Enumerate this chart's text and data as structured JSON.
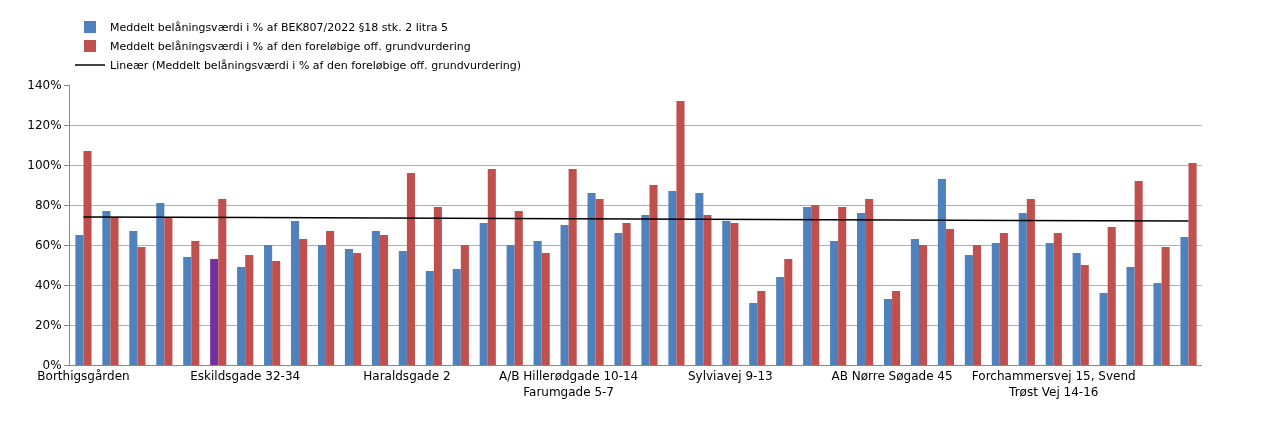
{
  "chart_data": {
    "type": "bar",
    "categories": [
      "Borthigsgården",
      null,
      null,
      null,
      null,
      null,
      "Eskildsgade 32-34",
      null,
      null,
      null,
      null,
      null,
      "Haraldsgade 2",
      null,
      null,
      null,
      null,
      null,
      "A/B Hillerødgade 10-14\nFarumgade 5-7",
      null,
      null,
      null,
      null,
      null,
      "Sylviavej 9-13",
      null,
      null,
      null,
      null,
      null,
      "AB Nørre Søgade 45",
      null,
      null,
      null,
      null,
      null,
      "Forchammersvej 15, Svend\nTrøst Vej 14-16",
      null,
      null,
      null,
      null,
      null
    ],
    "series": [
      {
        "name": "Meddelt belåningsværdi i % af BEK807/2022 §18 stk. 2 litra 5",
        "color": "#4f81bd",
        "colors": [
          "#4f81bd",
          "#4f81bd",
          "#4f81bd",
          "#4f81bd",
          "#4f81bd",
          "#7030a0",
          "#4f81bd",
          "#4f81bd",
          "#4f81bd",
          "#4f81bd",
          "#4f81bd",
          "#4f81bd",
          "#4f81bd",
          "#4f81bd",
          "#4f81bd",
          "#4f81bd",
          "#4f81bd",
          "#4f81bd",
          "#4f81bd",
          "#4f81bd",
          "#4f81bd",
          "#4f81bd",
          "#4f81bd",
          "#4f81bd",
          "#4f81bd",
          "#4f81bd",
          "#4f81bd",
          "#4f81bd",
          "#4f81bd",
          "#4f81bd",
          "#4f81bd",
          "#4f81bd",
          "#4f81bd",
          "#4f81bd",
          "#4f81bd",
          "#4f81bd",
          "#4f81bd",
          "#4f81bd",
          "#4f81bd",
          "#4f81bd",
          "#4f81bd",
          "#4f81bd"
        ],
        "values": [
          65,
          77,
          67,
          81,
          54,
          53,
          49,
          60,
          72,
          60,
          58,
          67,
          57,
          47,
          48,
          71,
          60,
          62,
          70,
          86,
          66,
          75,
          87,
          86,
          72,
          31,
          44,
          79,
          62,
          76,
          33,
          63,
          93,
          55,
          61,
          76,
          61,
          56,
          36,
          49,
          41,
          64
        ]
      },
      {
        "name": "Meddelt belåningsværdi i % af den foreløbige off. grundvurdering",
        "color": "#c0504d",
        "values": [
          107,
          74,
          59,
          74,
          62,
          83,
          55,
          52,
          63,
          67,
          56,
          65,
          96,
          79,
          60,
          98,
          77,
          56,
          98,
          83,
          71,
          90,
          132,
          75,
          71,
          37,
          53,
          80,
          79,
          83,
          37,
          60,
          68,
          60,
          66,
          83,
          66,
          50,
          69,
          92,
          59,
          101
        ]
      },
      {
        "name": "Lineær (Meddelt belåningsværdi i % af den foreløbige off. grundvurdering)",
        "type": "line",
        "color": "#000000",
        "values": [
          74,
          null,
          null,
          null,
          null,
          null,
          null,
          null,
          null,
          null,
          null,
          null,
          null,
          null,
          null,
          null,
          null,
          null,
          null,
          null,
          null,
          null,
          null,
          null,
          null,
          null,
          null,
          null,
          null,
          null,
          null,
          null,
          null,
          null,
          null,
          null,
          null,
          null,
          null,
          null,
          null,
          72
        ]
      }
    ],
    "ylim": [
      0,
      140
    ],
    "yticks": [
      {
        "value": 0,
        "label": "0%"
      },
      {
        "value": 20,
        "label": "20%"
      },
      {
        "value": 40,
        "label": "40%"
      },
      {
        "value": 60,
        "label": "60%"
      },
      {
        "value": 80,
        "label": "80%"
      },
      {
        "value": 100,
        "label": "100%"
      },
      {
        "value": 120,
        "label": "120%"
      },
      {
        "value": 140,
        "label": "140%"
      }
    ],
    "grid": "y",
    "legend": "top",
    "marker": "none"
  }
}
